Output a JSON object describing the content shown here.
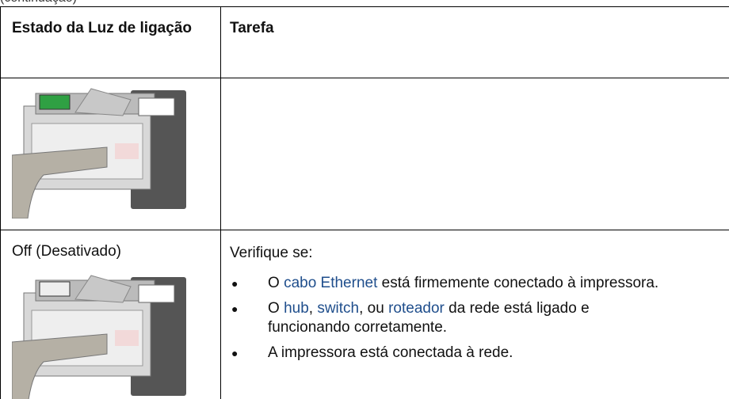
{
  "caption": "(continuação)",
  "table": {
    "header": [
      "Estado da Luz de ligação",
      "Tarefa"
    ],
    "rows": [
      {
        "state": "Off (Desativado)",
        "task_intro": "Verifique se:",
        "items": [
          [
            {
              "text": "O "
            },
            {
              "link": "cabo Ethernet"
            },
            {
              "text": " está firmemente conectado à impressora."
            }
          ],
          [
            {
              "text": "O "
            },
            {
              "link": "hub"
            },
            {
              "text": ", "
            },
            {
              "link": "switch"
            },
            {
              "text": ", ou "
            },
            {
              "link": "roteador"
            },
            {
              "text": " da rede está ligado e funcionando corretamente."
            }
          ],
          [
            {
              "text": "A impressora está conectada à rede."
            }
          ]
        ]
      }
    ]
  }
}
